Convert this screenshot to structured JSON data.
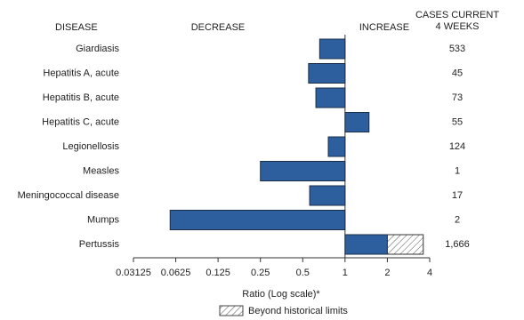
{
  "chart_data": {
    "type": "bar",
    "orientation": "horizontal",
    "log_scale": true,
    "base": 1,
    "headers": {
      "disease": "DISEASE",
      "decrease": "DECREASE",
      "increase": "INCREASE",
      "cases": [
        "CASES CURRENT",
        "4 WEEKS"
      ]
    },
    "categories": [
      "Giardiasis",
      "Hepatitis A, acute",
      "Hepatitis B, acute",
      "Hepatitis C, acute",
      "Legionellosis",
      "Measles",
      "Meningococcal disease",
      "Mumps",
      "Pertussis"
    ],
    "values": [
      0.66,
      0.55,
      0.62,
      1.48,
      0.76,
      0.25,
      0.56,
      0.057,
      3.6
    ],
    "historical_limits": [
      null,
      null,
      null,
      null,
      null,
      null,
      null,
      null,
      2
    ],
    "cases": [
      "533",
      "45",
      "73",
      "55",
      "124",
      "1",
      "17",
      "2",
      "1,666"
    ],
    "color": "#2d5f9f",
    "xlim": [
      0.03125,
      4
    ],
    "xticks": [
      0.03125,
      0.0625,
      0.125,
      0.25,
      0.5,
      1,
      2,
      4
    ],
    "xlabel": "Ratio (Log scale)*",
    "legend": "Beyond historical limits"
  }
}
